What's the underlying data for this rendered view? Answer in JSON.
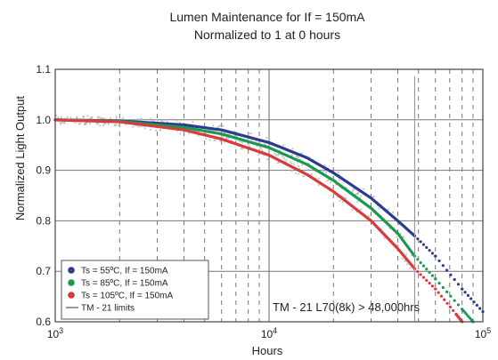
{
  "chart_data": {
    "type": "line",
    "title": "Lumen Maintenance for If = 150mA",
    "subtitle": "Normalized to 1 at 0 hours",
    "xlabel": "Hours",
    "ylabel": "Normalized Light Output",
    "x_scale": "log",
    "xlim": [
      1000,
      100000
    ],
    "ylim": [
      0.6,
      1.1
    ],
    "x_ticks": [
      1000,
      10000,
      100000
    ],
    "x_tick_labels": [
      {
        "base": "10",
        "exp": "3"
      },
      {
        "base": "10",
        "exp": "4"
      },
      {
        "base": "10",
        "exp": "5"
      }
    ],
    "y_ticks": [
      0.6,
      0.7,
      0.8,
      0.9,
      1.0,
      1.1
    ],
    "y_tick_labels": [
      "0.6",
      "0.7",
      "0.8",
      "0.9",
      "1.0",
      "1.1"
    ],
    "grid": true,
    "legend_position": "bottom-left",
    "series": [
      {
        "name": "Ts = 55ºC, If = 150mA",
        "color": "#2b3b8f",
        "x": [
          1000,
          2000,
          4000,
          6000,
          10000,
          15000,
          20000,
          30000,
          40000,
          48000
        ],
        "y": [
          1.0,
          0.998,
          0.99,
          0.98,
          0.955,
          0.925,
          0.895,
          0.845,
          0.8,
          0.77
        ],
        "extrapolation": {
          "x": [
            48000,
            60000,
            80000,
            100000
          ],
          "y": [
            0.77,
            0.73,
            0.665,
            0.62
          ]
        }
      },
      {
        "name": "Ts = 85ºC, If = 150mA",
        "color": "#1a9950",
        "x": [
          1000,
          2000,
          4000,
          6000,
          10000,
          15000,
          20000,
          30000,
          40000,
          48000
        ],
        "y": [
          1.0,
          0.997,
          0.985,
          0.972,
          0.945,
          0.912,
          0.88,
          0.825,
          0.775,
          0.73
        ],
        "extrapolation": {
          "x": [
            48000,
            60000,
            80000,
            90000
          ],
          "y": [
            0.73,
            0.685,
            0.625,
            0.6
          ]
        }
      },
      {
        "name": "Ts = 105ºC, If = 150mA",
        "color": "#d93a3a",
        "x": [
          1000,
          2000,
          4000,
          6000,
          10000,
          15000,
          20000,
          30000,
          40000,
          48000
        ],
        "y": [
          1.0,
          0.996,
          0.98,
          0.962,
          0.93,
          0.892,
          0.858,
          0.8,
          0.745,
          0.705
        ],
        "extrapolation": {
          "x": [
            48000,
            60000,
            75000,
            80000
          ],
          "y": [
            0.705,
            0.665,
            0.615,
            0.6
          ]
        }
      }
    ],
    "reference": {
      "name": "TM - 21 limits",
      "color": "#9a9a9a",
      "x": 48000
    },
    "annotation": "TM - 21 L70(8k) > 48,000hrs"
  }
}
